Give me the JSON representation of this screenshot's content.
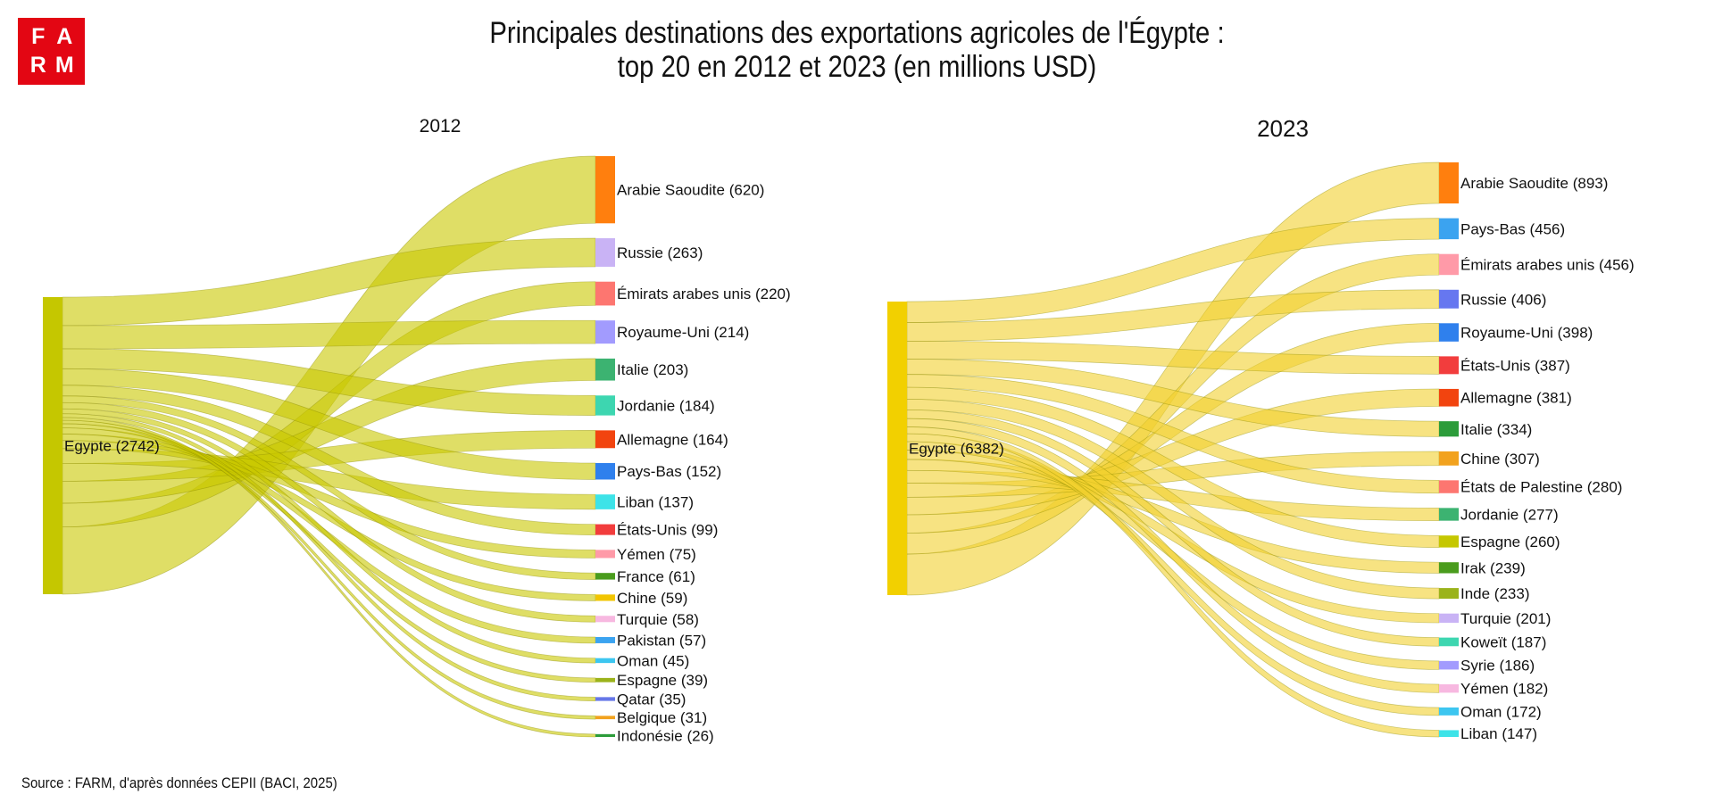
{
  "logo": {
    "letters": [
      "F",
      "A",
      "R",
      "M"
    ],
    "color": "#e30613"
  },
  "title": {
    "line1": "Principales destinations des exportations agricoles de l'Égypte :",
    "line2": "top 20 en 2012 et 2023 (en millions USD)"
  },
  "source": "Source : FARM, d'après données CEPII (BACI, 2025)",
  "chart_data": [
    {
      "type": "sankey",
      "title": "2012",
      "source_node": {
        "label": "Egypte (2742)",
        "name": "Egypte",
        "value": 2742,
        "color": "#c5c700"
      },
      "link_color": "#c9c800",
      "targets": [
        {
          "label": "Arabie Saoudite (620)",
          "name": "Arabie Saoudite",
          "value": 620,
          "color": "#ff7f0e"
        },
        {
          "label": "Russie (263)",
          "name": "Russie",
          "value": 263,
          "color": "#c9b3f5"
        },
        {
          "label": "Émirats arabes unis (220)",
          "name": "Émirats arabes unis",
          "value": 220,
          "color": "#fd7670"
        },
        {
          "label": "Royaume-Uni (214)",
          "name": "Royaume-Uni",
          "value": 214,
          "color": "#a29bfe"
        },
        {
          "label": "Italie (203)",
          "name": "Italie",
          "value": 203,
          "color": "#3cb371"
        },
        {
          "label": "Jordanie (184)",
          "name": "Jordanie",
          "value": 184,
          "color": "#3dd6b0"
        },
        {
          "label": "Allemagne (164)",
          "name": "Allemagne",
          "value": 164,
          "color": "#f2440f"
        },
        {
          "label": "Pays-Bas (152)",
          "name": "Pays-Bas",
          "value": 152,
          "color": "#2f80ed"
        },
        {
          "label": "Liban (137)",
          "name": "Liban",
          "value": 137,
          "color": "#3de3e8"
        },
        {
          "label": "États-Unis (99)",
          "name": "États-Unis",
          "value": 99,
          "color": "#f23d3d"
        },
        {
          "label": "Yémen (75)",
          "name": "Yémen",
          "value": 75,
          "color": "#ff9aa8"
        },
        {
          "label": "France (61)",
          "name": "France",
          "value": 61,
          "color": "#4a9c1d"
        },
        {
          "label": "Chine (59)",
          "name": "Chine",
          "value": 59,
          "color": "#f2c500"
        },
        {
          "label": "Turquie (58)",
          "name": "Turquie",
          "value": 58,
          "color": "#f7b8e0"
        },
        {
          "label": "Pakistan (57)",
          "name": "Pakistan",
          "value": 57,
          "color": "#3ba3f0"
        },
        {
          "label": "Oman (45)",
          "name": "Oman",
          "value": 45,
          "color": "#3dc6f0"
        },
        {
          "label": "Espagne (39)",
          "name": "Espagne",
          "value": 39,
          "color": "#9bb31b"
        },
        {
          "label": "Qatar (35)",
          "name": "Qatar",
          "value": 35,
          "color": "#6677e8"
        },
        {
          "label": "Belgique (31)",
          "name": "Belgique",
          "value": 31,
          "color": "#f2a21e"
        },
        {
          "label": "Indonésie (26)",
          "name": "Indonésie",
          "value": 26,
          "color": "#2c9c3a"
        }
      ]
    },
    {
      "type": "sankey",
      "title": "2023",
      "source_node": {
        "label": "Egypte (6382)",
        "name": "Egypte",
        "value": 6382,
        "color": "#f2d000"
      },
      "link_color": "#f2d12e",
      "targets": [
        {
          "label": "Arabie Saoudite (893)",
          "name": "Arabie Saoudite",
          "value": 893,
          "color": "#ff7f0e"
        },
        {
          "label": "Pays-Bas (456)",
          "name": "Pays-Bas",
          "value": 456,
          "color": "#3ba3f0"
        },
        {
          "label": "Émirats arabes unis (456)",
          "name": "Émirats arabes unis",
          "value": 456,
          "color": "#ff9aa8"
        },
        {
          "label": "Russie (406)",
          "name": "Russie",
          "value": 406,
          "color": "#6677f0"
        },
        {
          "label": "Royaume-Uni (398)",
          "name": "Royaume-Uni",
          "value": 398,
          "color": "#2f80ed"
        },
        {
          "label": "États-Unis (387)",
          "name": "États-Unis",
          "value": 387,
          "color": "#f23d3d"
        },
        {
          "label": "Allemagne (381)",
          "name": "Allemagne",
          "value": 381,
          "color": "#f2440f"
        },
        {
          "label": "Italie (334)",
          "name": "Italie",
          "value": 334,
          "color": "#2c9c3a"
        },
        {
          "label": "Chine (307)",
          "name": "Chine",
          "value": 307,
          "color": "#f2a21e"
        },
        {
          "label": "États de Palestine (280)",
          "name": "États de Palestine",
          "value": 280,
          "color": "#fd7670"
        },
        {
          "label": "Jordanie (277)",
          "name": "Jordanie",
          "value": 277,
          "color": "#3cb371"
        },
        {
          "label": "Espagne (260)",
          "name": "Espagne",
          "value": 260,
          "color": "#c5c700"
        },
        {
          "label": "Irak (239)",
          "name": "Irak",
          "value": 239,
          "color": "#4a9c1d"
        },
        {
          "label": "Inde (233)",
          "name": "Inde",
          "value": 233,
          "color": "#9bb31b"
        },
        {
          "label": "Turquie (201)",
          "name": "Turquie",
          "value": 201,
          "color": "#c9b3f5"
        },
        {
          "label": "Koweït (187)",
          "name": "Koweït",
          "value": 187,
          "color": "#3dd6b0"
        },
        {
          "label": "Syrie (186)",
          "name": "Syrie",
          "value": 186,
          "color": "#a29bfe"
        },
        {
          "label": "Yémen (182)",
          "name": "Yémen",
          "value": 182,
          "color": "#f7b8e0"
        },
        {
          "label": "Oman (172)",
          "name": "Oman",
          "value": 172,
          "color": "#3dc6f0"
        },
        {
          "label": "Liban (147)",
          "name": "Liban",
          "value": 147,
          "color": "#3de3e8"
        }
      ]
    }
  ]
}
